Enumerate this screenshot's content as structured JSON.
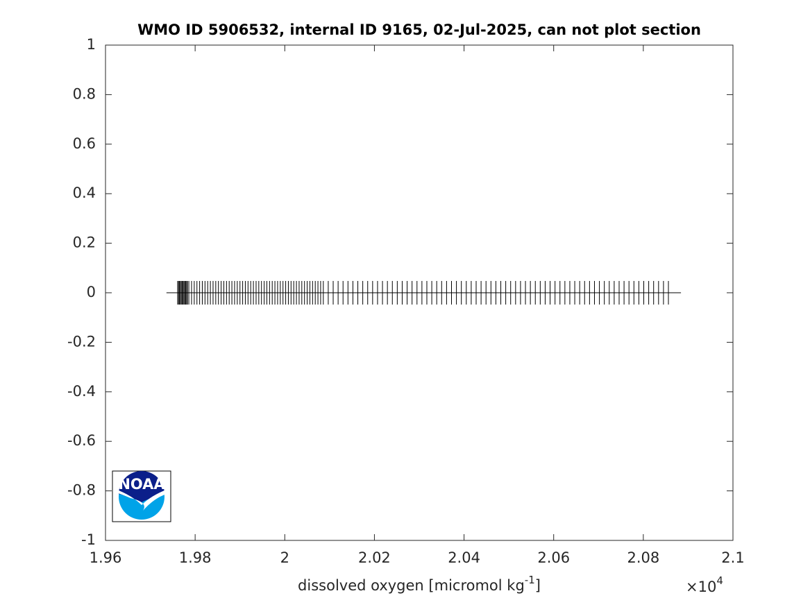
{
  "chart_data": {
    "type": "strip",
    "title": "WMO ID 5906532, internal ID 9165, 02-Jul-2025, can not plot section",
    "xlabel": "dissolved oxygen [micromol kg",
    "xlabel_sup": "-1",
    "xlabel_end": "]",
    "x_multiplier": "×10",
    "x_multiplier_exp": "4",
    "logo_text": "NOAA",
    "xlim": [
      19600,
      21000
    ],
    "xticks": [
      {
        "value": 19600,
        "label": "1.96"
      },
      {
        "value": 19800,
        "label": "1.98"
      },
      {
        "value": 20000,
        "label": "2"
      },
      {
        "value": 20200,
        "label": "2.02"
      },
      {
        "value": 20400,
        "label": "2.04"
      },
      {
        "value": 20600,
        "label": "2.06"
      },
      {
        "value": 20800,
        "label": "2.08"
      },
      {
        "value": 21000,
        "label": "2.1"
      }
    ],
    "ylim": [
      -1,
      1
    ],
    "yticks": [
      -1,
      -0.8,
      -0.6,
      -0.4,
      -0.2,
      0,
      0.2,
      0.4,
      0.6,
      0.8,
      1
    ],
    "color": "#000000",
    "range_line": {
      "x": [
        19736,
        20884
      ],
      "values": [
        0,
        0
      ]
    },
    "x": [
      19761,
      19763,
      19765,
      19767,
      19769,
      19771,
      19773,
      19775,
      19777,
      19779,
      19781,
      19783,
      19786,
      19792,
      19798,
      19804,
      19810,
      19816,
      19822,
      19828,
      19834,
      19840,
      19846,
      19852,
      19858,
      19864,
      19870,
      19876,
      19882,
      19888,
      19894,
      19900,
      19906,
      19912,
      19918,
      19924,
      19930,
      19936,
      19942,
      19948,
      19954,
      19960,
      19966,
      19972,
      19978,
      19984,
      19990,
      19996,
      20002,
      20008,
      20014,
      20020,
      20026,
      20032,
      20038,
      20044,
      20050,
      20056,
      20062,
      20068,
      20074,
      20080,
      20086,
      20097,
      20108,
      20119,
      20130,
      20141,
      20152,
      20163,
      20174,
      20185,
      20196,
      20207,
      20218,
      20229,
      20240,
      20251,
      20262,
      20273,
      20284,
      20295,
      20306,
      20317,
      20328,
      20339,
      20350,
      20361,
      20372,
      20383,
      20394,
      20405,
      20416,
      20427,
      20438,
      20449,
      20460,
      20471,
      20482,
      20493,
      20504,
      20515,
      20526,
      20537,
      20548,
      20559,
      20570,
      20581,
      20592,
      20603,
      20614,
      20625,
      20636,
      20647,
      20658,
      20669,
      20680,
      20691,
      20702,
      20713,
      20724,
      20735,
      20746,
      20757,
      20768,
      20779,
      20790,
      20801,
      20812,
      20823,
      20834,
      20845,
      20856
    ],
    "values": [
      0,
      0,
      0,
      0,
      0,
      0,
      0,
      0,
      0,
      0,
      0,
      0,
      0,
      0,
      0,
      0,
      0,
      0,
      0,
      0,
      0,
      0,
      0,
      0,
      0,
      0,
      0,
      0,
      0,
      0,
      0,
      0,
      0,
      0,
      0,
      0,
      0,
      0,
      0,
      0,
      0,
      0,
      0,
      0,
      0,
      0,
      0,
      0,
      0,
      0,
      0,
      0,
      0,
      0,
      0,
      0,
      0,
      0,
      0,
      0,
      0,
      0,
      0,
      0,
      0,
      0,
      0,
      0,
      0,
      0,
      0,
      0,
      0,
      0,
      0,
      0,
      0,
      0,
      0,
      0,
      0,
      0,
      0,
      0,
      0,
      0,
      0,
      0,
      0,
      0,
      0,
      0,
      0,
      0,
      0,
      0,
      0,
      0,
      0,
      0,
      0,
      0,
      0,
      0,
      0,
      0,
      0,
      0,
      0,
      0,
      0,
      0,
      0,
      0,
      0,
      0,
      0,
      0,
      0,
      0,
      0,
      0,
      0,
      0,
      0,
      0,
      0,
      0,
      0,
      0,
      0,
      0,
      0
    ]
  }
}
